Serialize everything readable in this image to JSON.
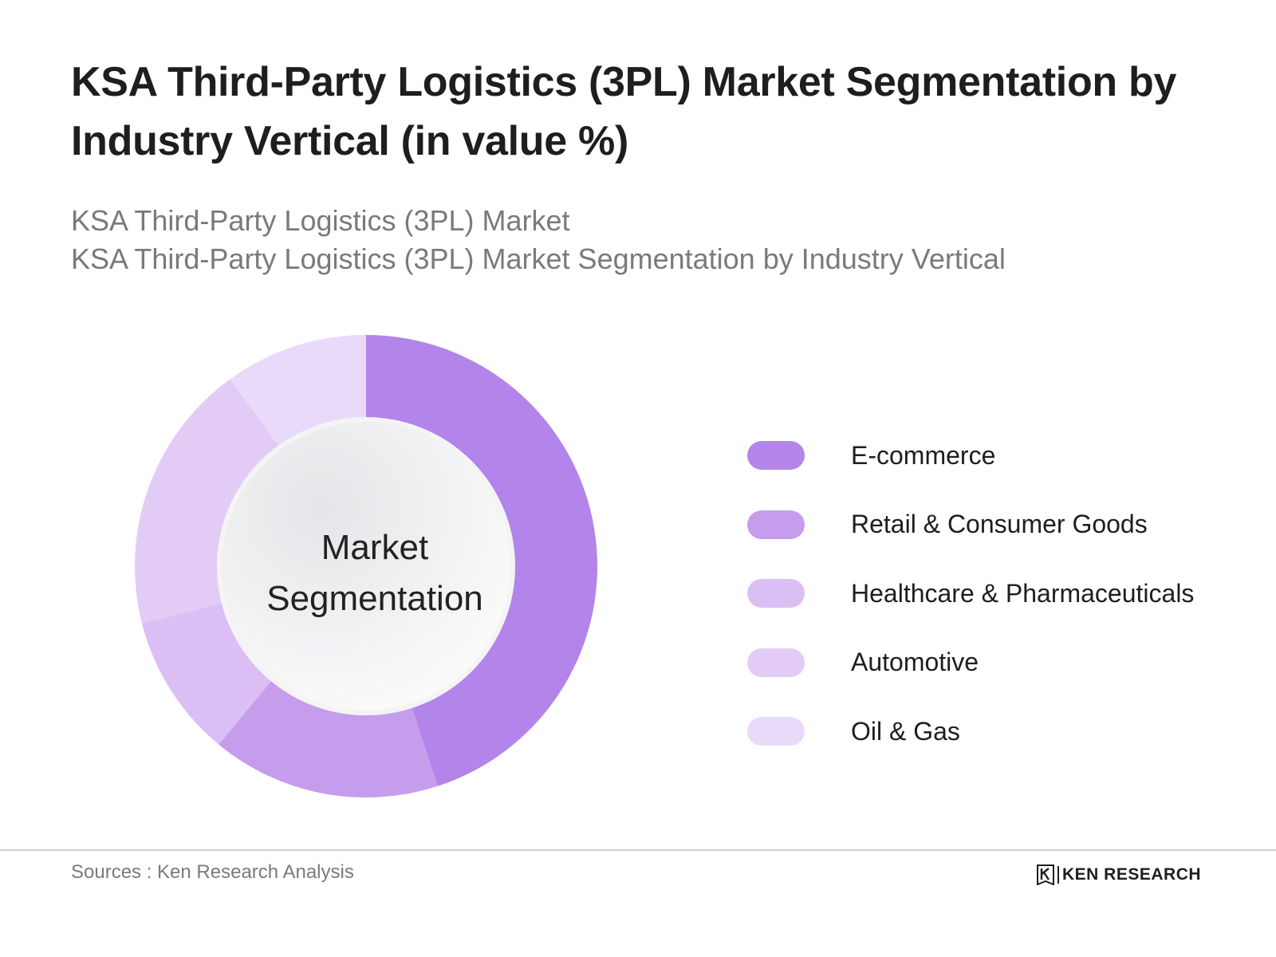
{
  "title": "KSA Third-Party Logistics (3PL) Market Segmentation by Industry Vertical (in value %)",
  "subtitle_lines": [
    "KSA Third-Party Logistics (3PL) Market",
    "KSA Third-Party Logistics (3PL) Market Segmentation by Industry Vertical"
  ],
  "center_label": {
    "line1": "Market",
    "line2": "Segmentation"
  },
  "chart_data": {
    "type": "pie",
    "subtype": "donut",
    "categories": [
      "E-commerce",
      "Retail & Consumer Goods",
      "Healthcare & Pharmaceuticals",
      "Automotive",
      "Oil & Gas"
    ],
    "values": [
      45,
      16,
      10,
      19,
      10
    ],
    "colors": [
      "#b384ea",
      "#c69ded",
      "#dbbff4",
      "#e2ccf6",
      "#e9dafa"
    ],
    "legend_position": "right"
  },
  "footer": {
    "source": "Sources : Ken Research Analysis",
    "logo_text": "KEN RESEARCH"
  }
}
